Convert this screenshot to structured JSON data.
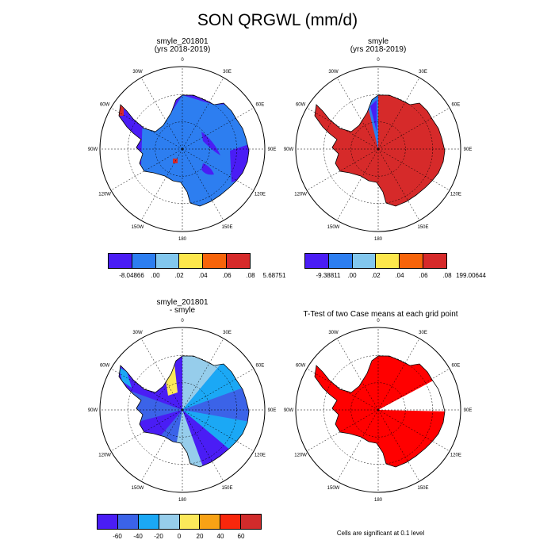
{
  "title": "SON QRGWL (mm/d)",
  "panels": [
    {
      "title1": "smyle_201801",
      "title2": "(yrs 2018-2019)",
      "fill": "mostly-blue",
      "colorbar": {
        "labels": [
          "-8.04866",
          ".00",
          ".02",
          ".04",
          ".06",
          ".08",
          "5.68751"
        ]
      }
    },
    {
      "title1": "smyle",
      "title2": "(yrs 2018-2019)",
      "fill": "mostly-red",
      "colorbar": {
        "labels": [
          "-9.38811",
          ".00",
          ".02",
          ".04",
          ".06",
          ".08",
          "199.00644"
        ]
      }
    },
    {
      "title1": "smyle_201801",
      "title2": "- smyle",
      "fill": "difference",
      "colorbar": {
        "labels": [
          "-60",
          "-40",
          "-20",
          "0",
          "20",
          "40",
          "60"
        ]
      }
    },
    {
      "title1": "T-Test of two Case means at each grid point",
      "title2": "",
      "fill": "significance"
    }
  ],
  "longitude_labels": [
    "0",
    "30E",
    "60E",
    "90E",
    "120E",
    "150E",
    "180",
    "150W",
    "120W",
    "90W",
    "60W",
    "30W"
  ],
  "colors": {
    "six_level": [
      "#4a1df5",
      "#2d7ef0",
      "#82c7ee",
      "#fde74c",
      "#f7640a",
      "#d62a2a"
    ],
    "eight_level": [
      "#4a1df5",
      "#3b63e8",
      "#1ba8f5",
      "#96cdeb",
      "#fbe85a",
      "#f8a215",
      "#f8270c",
      "#d12b2b"
    ],
    "significance": "#ff0000"
  },
  "note": "Cells are significant at 0.1 level"
}
